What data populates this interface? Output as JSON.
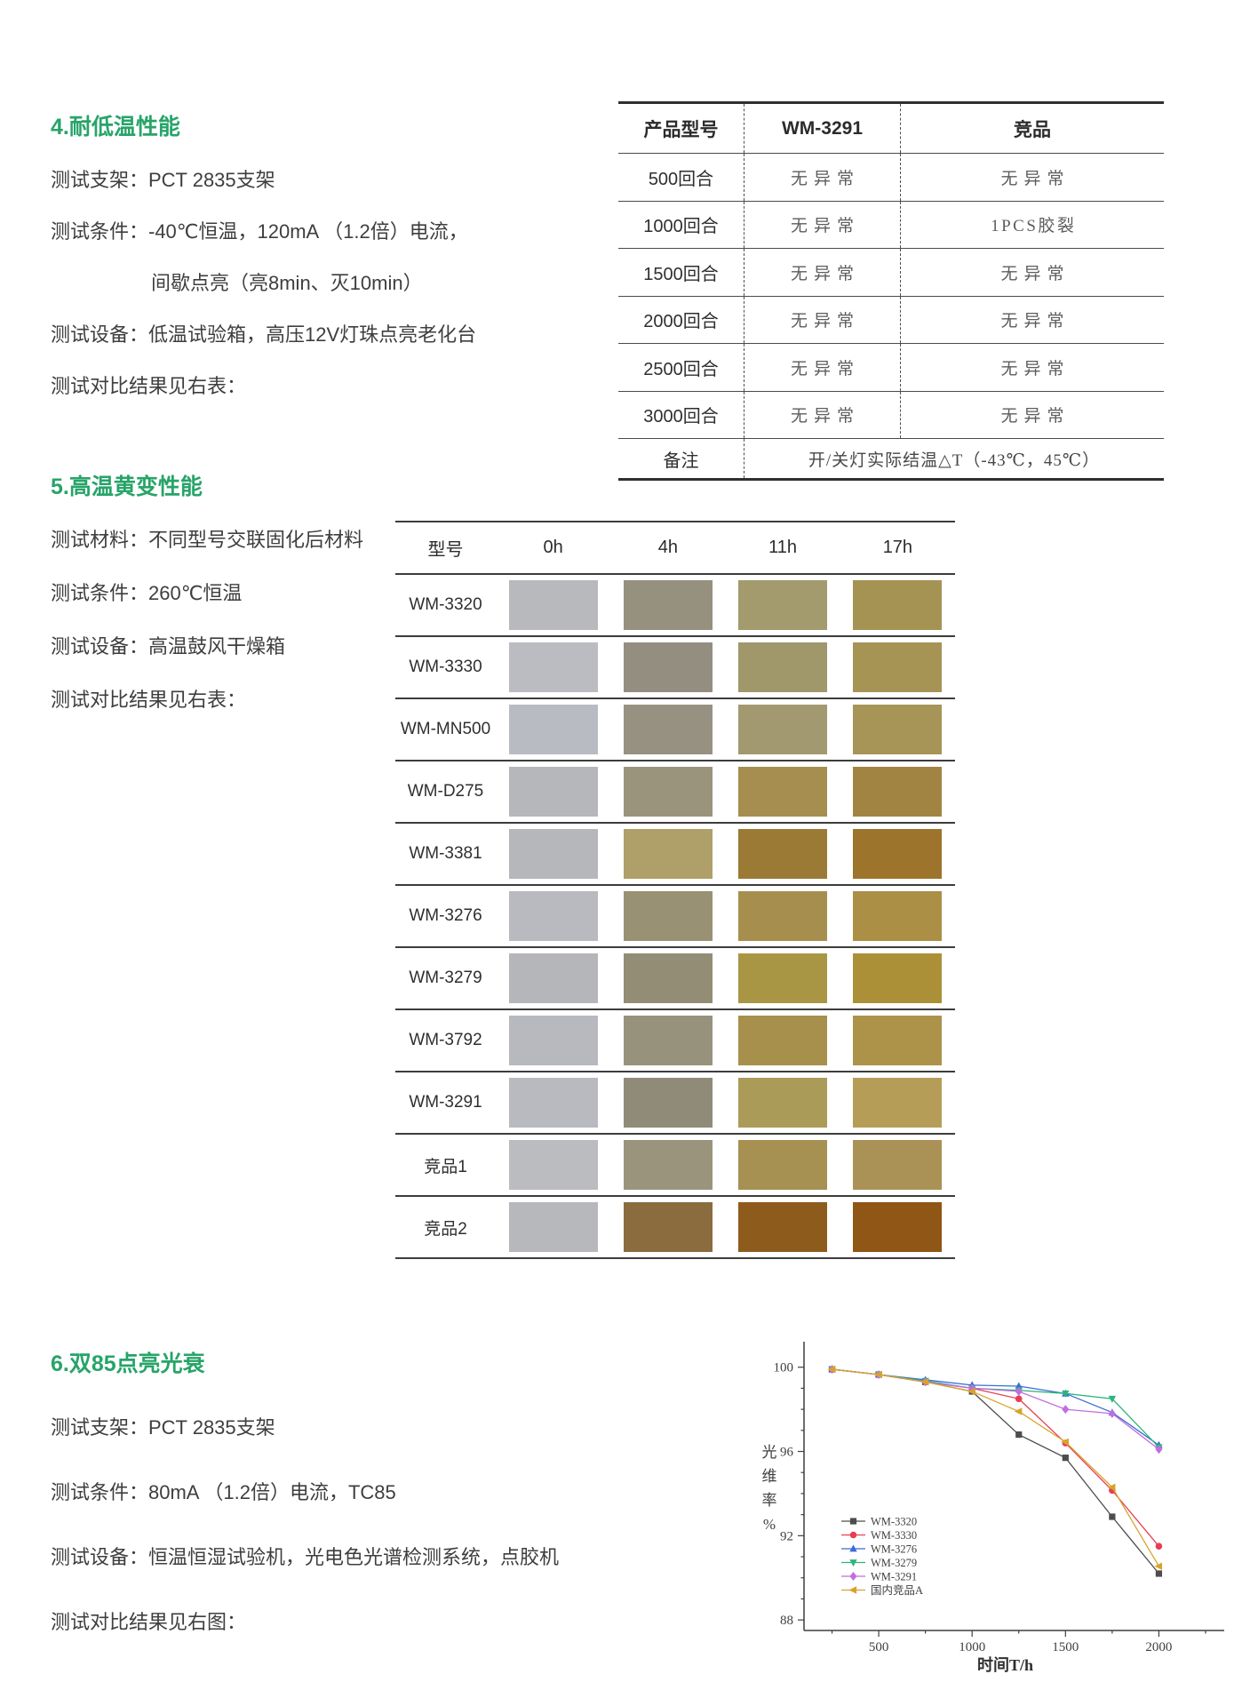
{
  "section4": {
    "heading": "4.耐低温性能",
    "lines": [
      {
        "text": "测试支架：PCT 2835支架",
        "indent": false
      },
      {
        "text": "测试条件：-40℃恒温，120mA （1.2倍）电流，",
        "indent": false
      },
      {
        "text": "间歇点亮（亮8min、灭10min）",
        "indent": true
      },
      {
        "text": "测试设备：低温试验箱，高压12V灯珠点亮老化台",
        "indent": false
      },
      {
        "text": "测试对比结果见右表：",
        "indent": false
      }
    ]
  },
  "table1": {
    "headers": [
      "产品型号",
      "WM-3291",
      "竞品"
    ],
    "rows": [
      [
        "500回合",
        "无异常",
        "无异常"
      ],
      [
        "1000回合",
        "无异常",
        "1PCS胶裂"
      ],
      [
        "1500回合",
        "无异常",
        "无异常"
      ],
      [
        "2000回合",
        "无异常",
        "无异常"
      ],
      [
        "2500回合",
        "无异常",
        "无异常"
      ],
      [
        "3000回合",
        "无异常",
        "无异常"
      ]
    ],
    "note_label": "备注",
    "note_value": "开/关灯实际结温△T（-43℃，45℃）"
  },
  "section5": {
    "heading": "5.高温黄变性能",
    "lines": [
      {
        "text": "测试材料：不同型号交联固化后材料",
        "indent": false
      },
      {
        "text": "测试条件：260℃恒温",
        "indent": false
      },
      {
        "text": "测试设备：高温鼓风干燥箱",
        "indent": false
      },
      {
        "text": "测试对比结果见右表：",
        "indent": false
      }
    ]
  },
  "swatch_table": {
    "headers": [
      "型号",
      "0h",
      "4h",
      "11h",
      "17h"
    ],
    "rows": [
      {
        "model": "WM-3320",
        "colors": [
          "#b8b9bd",
          "#96907f",
          "#a39a6d",
          "#a59354"
        ]
      },
      {
        "model": "WM-3330",
        "colors": [
          "#bbbcc1",
          "#938e80",
          "#a0976b",
          "#a69455"
        ]
      },
      {
        "model": "WM-MN500",
        "colors": [
          "#b9bbc2",
          "#979182",
          "#a29970",
          "#a79557"
        ]
      },
      {
        "model": "WM-D275",
        "colors": [
          "#b6b7bb",
          "#9a947d",
          "#a58e4f",
          "#a28442"
        ]
      },
      {
        "model": "WM-3381",
        "colors": [
          "#b6b7bb",
          "#af9f68",
          "#9a7a35",
          "#9c742c"
        ]
      },
      {
        "model": "WM-3276",
        "colors": [
          "#b9babf",
          "#999174",
          "#a68f4e",
          "#aa8f45"
        ]
      },
      {
        "model": "WM-3279",
        "colors": [
          "#b5b6ba",
          "#928d74",
          "#a89644",
          "#ac9038"
        ]
      },
      {
        "model": "WM-3792",
        "colors": [
          "#b8b9be",
          "#97927b",
          "#a78f4c",
          "#ad924a"
        ]
      },
      {
        "model": "WM-3291",
        "colors": [
          "#b9babf",
          "#8f8b78",
          "#ab9b59",
          "#b59d58"
        ]
      },
      {
        "model": "竞品1",
        "colors": [
          "#bbbcc0",
          "#9b947c",
          "#a69153",
          "#aa9256"
        ]
      },
      {
        "model": "竞品2",
        "colors": [
          "#b7b8bc",
          "#8a6c3e",
          "#8d5c1d",
          "#8f5616"
        ]
      }
    ]
  },
  "section6": {
    "heading": "6.双85点亮光衰",
    "lines": [
      {
        "text": "测试支架：PCT 2835支架",
        "indent": false
      },
      {
        "text": "测试条件：80mA （1.2倍）电流，TC85",
        "indent": false
      },
      {
        "text": "测试设备：恒温恒湿试验机，光电色光谱检测系统，点胶机",
        "indent": false
      },
      {
        "text": "测试对比结果见右图：",
        "indent": false
      }
    ]
  },
  "chart_data": {
    "type": "line",
    "title": "",
    "xlabel": "时间T/h",
    "ylabel": "光维率%",
    "x": [
      250,
      500,
      750,
      1000,
      1250,
      1500,
      1750,
      2000
    ],
    "xticks": [
      500,
      1000,
      1500,
      2000
    ],
    "yticks": [
      88,
      92,
      96,
      100
    ],
    "xlim": [
      100,
      2350
    ],
    "ylim": [
      87.5,
      101
    ],
    "grid": false,
    "legend_position": "inside-left",
    "series": [
      {
        "name": "WM-3320",
        "color": "#4d4d4d",
        "marker": "square",
        "values": [
          99.9,
          99.65,
          99.3,
          98.85,
          96.8,
          95.7,
          92.9,
          90.2
        ]
      },
      {
        "name": "WM-3330",
        "color": "#e63e55",
        "marker": "circle",
        "values": [
          99.9,
          99.65,
          99.3,
          99.0,
          98.5,
          96.4,
          94.15,
          91.5
        ]
      },
      {
        "name": "WM-3276",
        "color": "#3b6cd6",
        "marker": "triangle-up",
        "values": [
          99.9,
          99.65,
          99.4,
          99.15,
          99.1,
          98.75,
          97.85,
          96.3
        ]
      },
      {
        "name": "WM-3279",
        "color": "#2eb47c",
        "marker": "triangle-down",
        "values": [
          99.9,
          99.65,
          99.35,
          99.0,
          98.9,
          98.75,
          98.5,
          96.2
        ]
      },
      {
        "name": "WM-3291",
        "color": "#c06ee0",
        "marker": "diamond",
        "values": [
          99.9,
          99.65,
          99.3,
          99.0,
          98.85,
          98.0,
          97.8,
          96.1
        ]
      },
      {
        "name": "国内竞品A",
        "color": "#d9a32a",
        "marker": "triangle-left",
        "values": [
          99.9,
          99.65,
          99.3,
          98.85,
          97.9,
          96.45,
          94.3,
          90.55
        ]
      }
    ]
  }
}
